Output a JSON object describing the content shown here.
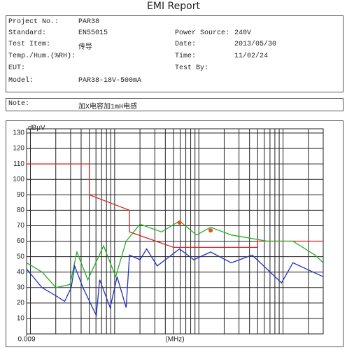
{
  "title": "EMI Report",
  "header": {
    "left": [
      {
        "label": "Project No.:",
        "value": "PAR38"
      },
      {
        "label": "Standard:",
        "value": "EN55015"
      },
      {
        "label": "Test Item:",
        "value": "传导"
      },
      {
        "label": "Temp./Hum.(%RH):"
      },
      {
        "label": "EUT:"
      },
      {
        "label": "Model:",
        "value": "PAR38-18V-500mA"
      }
    ],
    "right": [
      {
        "label": "Power Source:",
        "value": "240V"
      },
      {
        "label": "Date:",
        "value": "2013/05/30"
      },
      {
        "label": "Time:",
        "value": "11/02/24"
      },
      {
        "label": "Test By:"
      }
    ]
  },
  "note": {
    "label": "Note:",
    "value": "加X电容加1mH电感"
  },
  "chart_data": {
    "type": "line",
    "y_label": "dBμV",
    "x_label": "(MHz)",
    "xscale": "log",
    "xlim": [
      0.009,
      30
    ],
    "ylim": [
      0,
      130
    ],
    "yticks": [
      10,
      20,
      30,
      40,
      50,
      60,
      70,
      80,
      90,
      100,
      110,
      120,
      130
    ],
    "xticks": [
      {
        "value": 0.009,
        "label": "0.009"
      }
    ],
    "xgrid": [
      0.01,
      0.02,
      0.03,
      0.04,
      0.05,
      0.06,
      0.07,
      0.08,
      0.09,
      0.1,
      0.2,
      0.3,
      0.4,
      0.5,
      0.6,
      0.7,
      0.8,
      0.9,
      1,
      2,
      3,
      4,
      5,
      6,
      7,
      8,
      9,
      10,
      20
    ],
    "grid": true,
    "series": [
      {
        "color": "#e02020",
        "x": [
          0.009,
          0.05,
          0.05,
          0.15,
          0.15,
          0.5,
          5,
          5,
          30
        ],
        "values": [
          110,
          110,
          90,
          80,
          66,
          56,
          56,
          60,
          60
        ]
      },
      {
        "color": "#20b020",
        "x": [
          0.009,
          0.0138,
          0.0201,
          0.0295,
          0.0356,
          0.048,
          0.074,
          0.103,
          0.137,
          0.2,
          0.36,
          0.59,
          0.94,
          1.38,
          2.43,
          6.5,
          13.1,
          24,
          30
        ],
        "values": [
          46,
          40,
          30,
          32,
          53,
          35,
          57,
          37,
          60,
          71,
          66,
          73,
          64,
          69,
          64,
          60,
          60,
          51,
          46
        ]
      },
      {
        "color": "#2030c0",
        "x": [
          0.009,
          0.0137,
          0.021,
          0.0255,
          0.0305,
          0.0335,
          0.042,
          0.0605,
          0.0665,
          0.0885,
          0.107,
          0.137,
          0.15,
          0.2,
          0.24,
          0.32,
          0.59,
          0.87,
          1.38,
          2.43,
          4.3,
          9.6,
          13.1,
          19,
          30
        ],
        "values": [
          42,
          30,
          24,
          21,
          30,
          44,
          30,
          12,
          35,
          17,
          37,
          17,
          51,
          48,
          55,
          44,
          55,
          48,
          53,
          46,
          51,
          33,
          46,
          42,
          37
        ]
      },
      {
        "type": "scatter",
        "color": "#e05020",
        "x": [
          0.59,
          1.38
        ],
        "values": [
          72,
          67
        ]
      }
    ]
  }
}
